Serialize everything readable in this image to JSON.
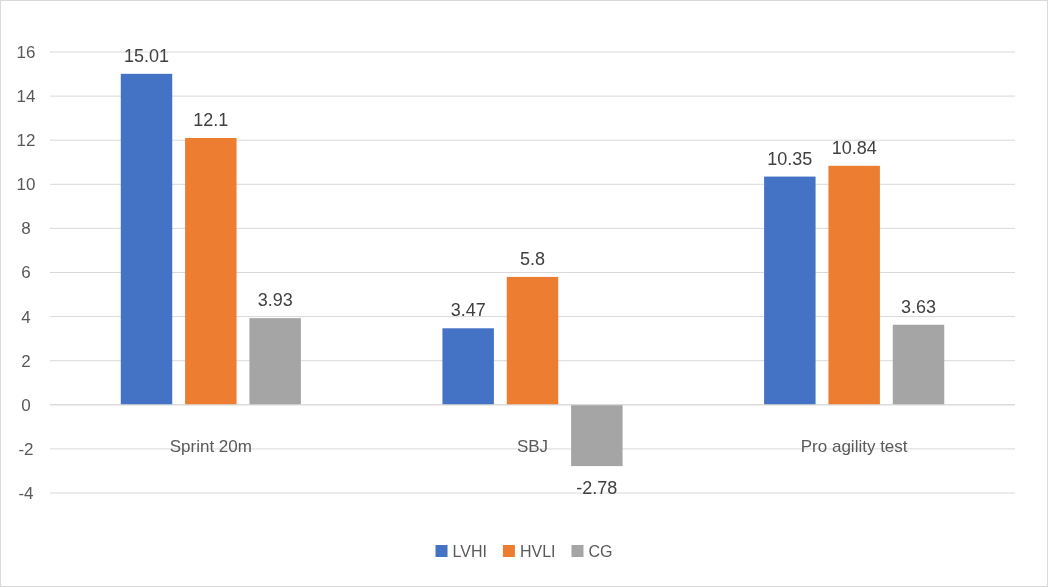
{
  "chart_data": {
    "type": "bar",
    "categories": [
      "Sprint 20m",
      "SBJ",
      "Pro agility test"
    ],
    "series": [
      {
        "name": "LVHI",
        "color": "#4472c4",
        "values": [
          15.01,
          3.47,
          10.35
        ]
      },
      {
        "name": "HVLI",
        "color": "#ed7d31",
        "values": [
          12.1,
          5.8,
          10.84
        ]
      },
      {
        "name": "CG",
        "color": "#a5a5a5",
        "values": [
          3.93,
          -2.78,
          3.63
        ]
      }
    ],
    "ylim": [
      -4,
      16
    ],
    "yticks": [
      -4,
      -2,
      0,
      2,
      4,
      6,
      8,
      10,
      12,
      14,
      16
    ],
    "grid": "y",
    "legend": "bottom",
    "data_labels": true
  }
}
